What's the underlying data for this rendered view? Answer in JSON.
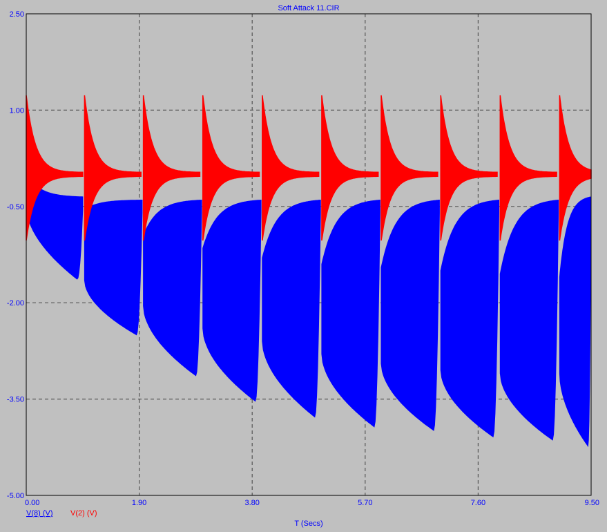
{
  "chart_data": {
    "type": "line",
    "title": "Soft Attack 11.CIR",
    "xlabel": "T (Secs)",
    "ylabel": "",
    "xlim": [
      0,
      9.5
    ],
    "ylim": [
      -5,
      2.5
    ],
    "x_ticks": [
      "0.00",
      "1.90",
      "3.80",
      "5.70",
      "7.60",
      "9.50"
    ],
    "x_tick_values": [
      0,
      1.9,
      3.8,
      5.7,
      7.6,
      9.5
    ],
    "y_ticks": [
      "2.50",
      "1.00",
      "-0.50",
      "-2.00",
      "-3.50",
      "-5.00"
    ],
    "y_tick_values": [
      2.5,
      1.0,
      -0.5,
      -2.0,
      -3.5,
      -5.0
    ],
    "grid": true,
    "legend_position": "bottom-left",
    "series": [
      {
        "name": "V(8) (V)",
        "color": "#0000ff",
        "envelope_note": "dense oscillation band; per-burst upper/lower envelope",
        "bursts": [
          {
            "t_start": 0.0,
            "t_end": 0.95,
            "upper_start": 0.0,
            "upper_end": -0.35,
            "lower_start": -0.5,
            "lower_end": -1.7
          },
          {
            "t_start": 0.98,
            "t_end": 1.95,
            "upper_start": -0.55,
            "upper_end": -0.4,
            "lower_start": -1.65,
            "lower_end": -2.55
          },
          {
            "t_start": 1.97,
            "t_end": 2.95,
            "upper_start": -0.95,
            "upper_end": -0.4,
            "lower_start": -2.05,
            "lower_end": -3.2
          },
          {
            "t_start": 2.97,
            "t_end": 3.95,
            "upper_start": -1.15,
            "upper_end": -0.4,
            "lower_start": -2.4,
            "lower_end": -3.6
          },
          {
            "t_start": 3.97,
            "t_end": 4.95,
            "upper_start": -1.3,
            "upper_end": -0.4,
            "lower_start": -2.6,
            "lower_end": -3.85
          },
          {
            "t_start": 4.97,
            "t_end": 5.95,
            "upper_start": -1.4,
            "upper_end": -0.4,
            "lower_start": -2.8,
            "lower_end": -4.0
          },
          {
            "t_start": 5.97,
            "t_end": 6.95,
            "upper_start": -1.45,
            "upper_end": -0.4,
            "lower_start": -2.95,
            "lower_end": -4.05
          },
          {
            "t_start": 6.97,
            "t_end": 7.95,
            "upper_start": -1.5,
            "upper_end": -0.4,
            "lower_start": -3.05,
            "lower_end": -4.15
          },
          {
            "t_start": 7.97,
            "t_end": 8.95,
            "upper_start": -1.55,
            "upper_end": -0.4,
            "lower_start": -3.1,
            "lower_end": -4.2
          },
          {
            "t_start": 8.97,
            "t_end": 9.5,
            "upper_start": -1.6,
            "upper_end": -0.35,
            "lower_start": -3.1,
            "lower_end": -4.3
          }
        ]
      },
      {
        "name": "V(2) (V)",
        "color": "#ff0000",
        "envelope_note": "decaying oscillation restarted each ~0.98 s, centered near 0",
        "burst_starts": [
          0.0,
          0.98,
          1.97,
          2.97,
          3.97,
          4.97,
          5.97,
          6.97,
          7.97,
          8.97
        ],
        "burst_duration": 0.95,
        "center": 0.0,
        "peak_high": 1.2,
        "peak_low": -1.0
      }
    ]
  }
}
